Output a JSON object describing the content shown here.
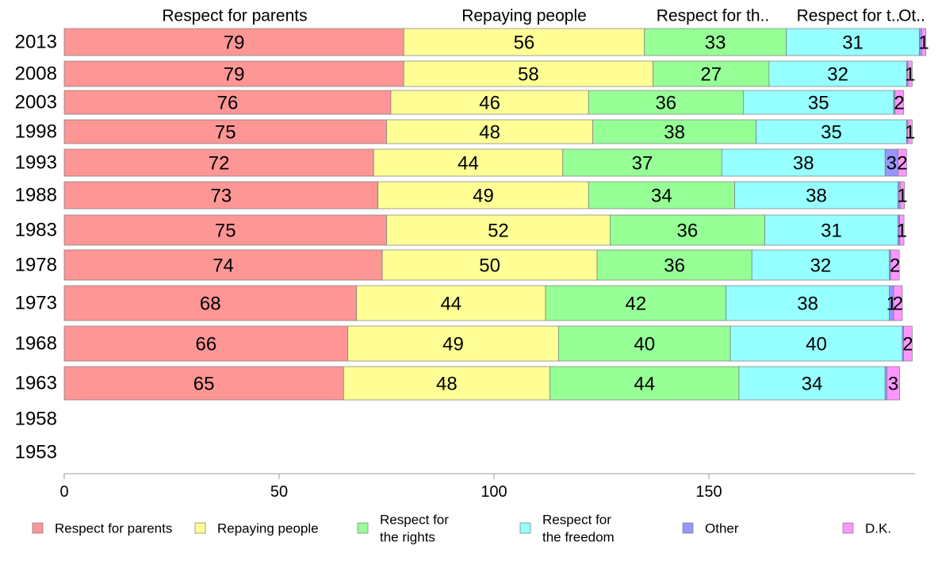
{
  "chart_data": {
    "type": "bar",
    "orientation": "horizontal",
    "stacked": true,
    "categories": [
      "2013",
      "2008",
      "2003",
      "1998",
      "1993",
      "1988",
      "1983",
      "1978",
      "1973",
      "1968",
      "1963",
      "1958",
      "1953"
    ],
    "series": [
      {
        "name": "Respect for parents",
        "color": "#FF9696",
        "values": [
          79,
          79,
          76,
          75,
          72,
          73,
          75,
          74,
          68,
          66,
          65,
          null,
          null
        ]
      },
      {
        "name": "Repaying people",
        "color": "#FFFF96",
        "values": [
          56,
          58,
          46,
          48,
          44,
          49,
          52,
          50,
          44,
          49,
          48,
          null,
          null
        ]
      },
      {
        "name": "Respect for the rights",
        "color": "#96FF96",
        "values": [
          33,
          27,
          36,
          38,
          37,
          34,
          36,
          36,
          42,
          40,
          44,
          null,
          null
        ]
      },
      {
        "name": "Respect for the freedom",
        "color": "#96FFFF",
        "values": [
          31,
          32,
          35,
          35,
          38,
          38,
          31,
          32,
          38,
          40,
          34,
          null,
          null
        ]
      },
      {
        "name": "Other",
        "color": "#9696FF",
        "values": [
          0.5,
          0.3,
          0.3,
          0.3,
          3,
          0.5,
          0.4,
          0.3,
          1,
          0.3,
          0.4,
          null,
          null
        ]
      },
      {
        "name": "D.K.",
        "color": "#FF96FF",
        "values": [
          1,
          1,
          2,
          1,
          2,
          1,
          1,
          2,
          2,
          2,
          3,
          null,
          null
        ]
      }
    ],
    "x_ticks": [
      "0",
      "50",
      "100",
      "150"
    ],
    "xlim": [
      0,
      198
    ],
    "top_labels": [
      "Respect for parents",
      "Repaying people",
      "Respect for th..",
      "Respect for t..",
      "Ot.."
    ],
    "legend": {
      "placement": "bottom",
      "entries": [
        {
          "text": [
            "Respect for parents"
          ],
          "color": "#FF9696"
        },
        {
          "text": [
            "Repaying people"
          ],
          "color": "#FFFF96"
        },
        {
          "text": [
            "Respect for",
            "the rights"
          ],
          "color": "#96FF96"
        },
        {
          "text": [
            "Respect for",
            "the freedom"
          ],
          "color": "#96FFFF"
        },
        {
          "text": [
            "Other"
          ],
          "color": "#9696FF"
        },
        {
          "text": [
            "D.K."
          ],
          "color": "#FF96FF"
        }
      ]
    },
    "bar_labels": [
      [
        "79",
        "56",
        "33",
        "31",
        "",
        "1"
      ],
      [
        "79",
        "58",
        "27",
        "32",
        "",
        "1"
      ],
      [
        "76",
        "46",
        "36",
        "35",
        "",
        "2"
      ],
      [
        "75",
        "48",
        "38",
        "35",
        "",
        "1"
      ],
      [
        "72",
        "44",
        "37",
        "38",
        "3",
        "2"
      ],
      [
        "73",
        "49",
        "34",
        "38",
        "",
        "1"
      ],
      [
        "75",
        "52",
        "36",
        "31",
        "",
        "1"
      ],
      [
        "74",
        "50",
        "36",
        "32",
        "",
        "2"
      ],
      [
        "68",
        "44",
        "42",
        "38",
        "1",
        "2"
      ],
      [
        "66",
        "49",
        "40",
        "40",
        "",
        "2"
      ],
      [
        "65",
        "48",
        "44",
        "34",
        "",
        "3"
      ],
      [],
      []
    ]
  }
}
